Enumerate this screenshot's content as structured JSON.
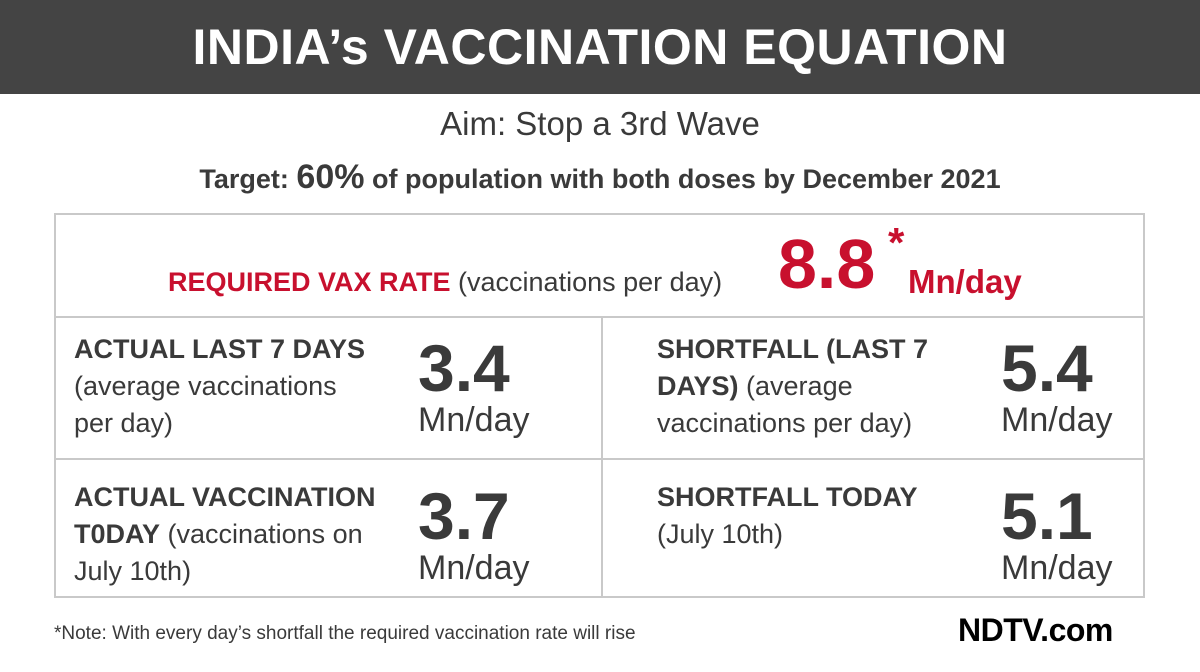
{
  "header": {
    "title": "INDIA’s VACCINATION EQUATION"
  },
  "aim": "Aim: Stop a 3rd Wave",
  "target": {
    "prefix": "Target: ",
    "value": "60%",
    "suffix": " of population with both doses by December 2021"
  },
  "required": {
    "label_bold": "REQUIRED VAX RATE",
    "label_rest": " (vaccinations per day)",
    "value": "8.8",
    "star": "*",
    "unit": "Mn/day"
  },
  "cells": [
    {
      "title": "ACTUAL LAST 7 DAYS",
      "desc": "(average vaccinations per day)",
      "value": "3.4",
      "unit": "Mn/day"
    },
    {
      "title": "SHORTFALL (LAST 7 DAYS)",
      "desc": " (average vaccinations per day)",
      "value": "5.4",
      "unit": "Mn/day"
    },
    {
      "title": "ACTUAL VACCINATION T0DAY",
      "desc": " (vaccinations on July 10th)",
      "value": "3.7",
      "unit": "Mn/day"
    },
    {
      "title": "SHORTFALL TODAY",
      "desc": "(July 10th)",
      "value": "5.1",
      "unit": "Mn/day"
    }
  ],
  "note": "*Note: With every day’s shortfall the required vaccination rate will rise",
  "logo": "NDTV.com",
  "colors": {
    "accent": "#c8102e",
    "banner": "#444444",
    "text": "#3a3a3a",
    "border": "#c9c9c9"
  }
}
